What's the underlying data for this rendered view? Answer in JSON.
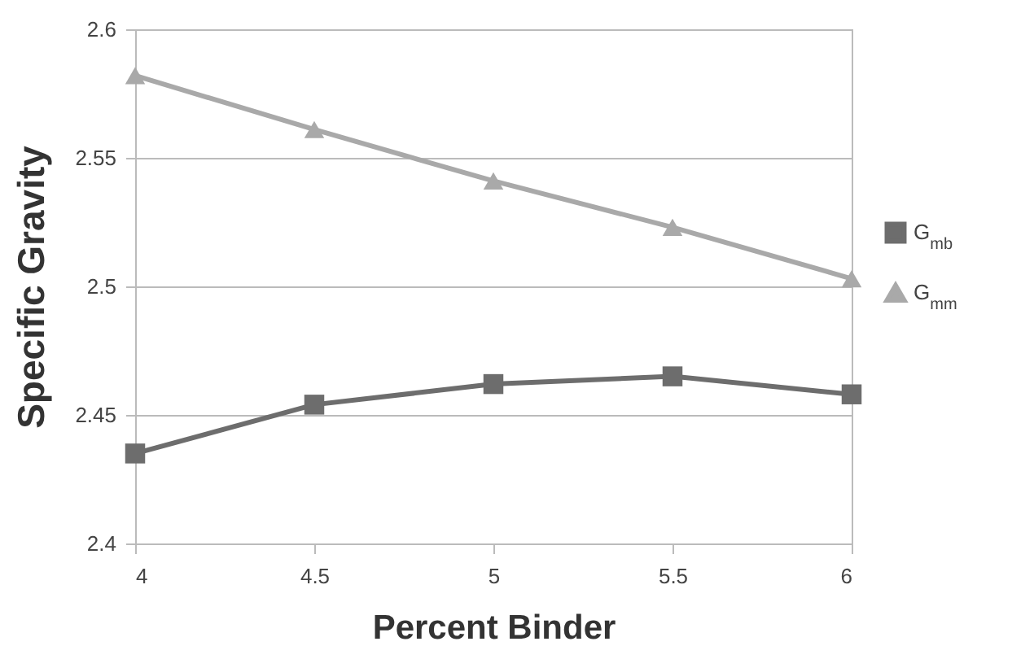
{
  "chart_data": {
    "type": "line",
    "xlabel": "Percent Binder",
    "ylabel": "Specific Gravity",
    "x": [
      4,
      4.5,
      5,
      5.5,
      6
    ],
    "series": [
      {
        "name": "G$_{mb}$",
        "color": "#6d6d6d",
        "marker": "square",
        "values": [
          2.435,
          2.454,
          2.462,
          2.465,
          2.458
        ]
      },
      {
        "name": "G$_{mm}$",
        "color": "#a9a9a9",
        "marker": "triangle",
        "values": [
          2.582,
          2.561,
          2.541,
          2.523,
          2.503
        ]
      }
    ],
    "xlim": [
      4,
      6
    ],
    "xticks": [
      4,
      4.5,
      5,
      5.5,
      6
    ],
    "ylim": [
      2.4,
      2.6
    ],
    "yticks": [
      2.4,
      2.45,
      2.5,
      2.55,
      2.6
    ],
    "grid": "y",
    "legend": "right"
  }
}
